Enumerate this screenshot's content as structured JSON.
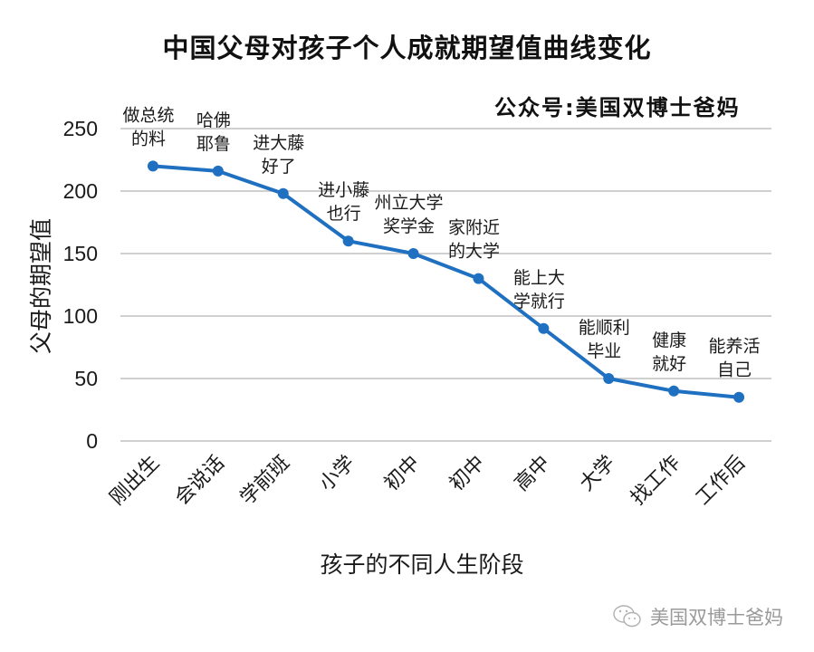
{
  "chart_data": {
    "type": "line",
    "title": "中国父母对孩子个人成就期望值曲线变化",
    "xlabel": "孩子的不同人生阶段",
    "ylabel": "父母的期望值",
    "ylim": [
      0,
      250
    ],
    "yticks": [
      "0",
      "50",
      "100",
      "150",
      "200",
      "250"
    ],
    "grid": true,
    "legend": "none",
    "categories": [
      "刚出生",
      "会说话",
      "学前班",
      "小学",
      "初中",
      "初中",
      "高中",
      "大学",
      "找工作",
      "工作后"
    ],
    "series": [
      {
        "name": "父母的期望值",
        "color": "#1F70C1",
        "values": [
          220,
          216,
          198,
          160,
          150,
          130,
          90,
          50,
          40,
          35
        ]
      }
    ],
    "annotations": [
      [
        "做总统",
        "的料"
      ],
      [
        "哈佛",
        "耶鲁"
      ],
      [
        "进大藤",
        "好了"
      ],
      [
        "进小藤",
        "也行"
      ],
      [
        "州立大学",
        "奖学金"
      ],
      [
        "家附近",
        "的大学"
      ],
      [
        "能上大",
        "学就行"
      ],
      [
        "能顺利",
        "毕业"
      ],
      [
        "健康",
        "就好"
      ],
      [
        "能养活",
        "自己"
      ]
    ]
  },
  "watermark": "公众号:美国双博士爸妈",
  "footer": {
    "account_name": "美国双博士爸妈",
    "icon": "wechat-icon"
  },
  "colors": {
    "line": "#1F70C1",
    "grid": "#D0D0D0",
    "footer_text": "#9A9A9A"
  }
}
